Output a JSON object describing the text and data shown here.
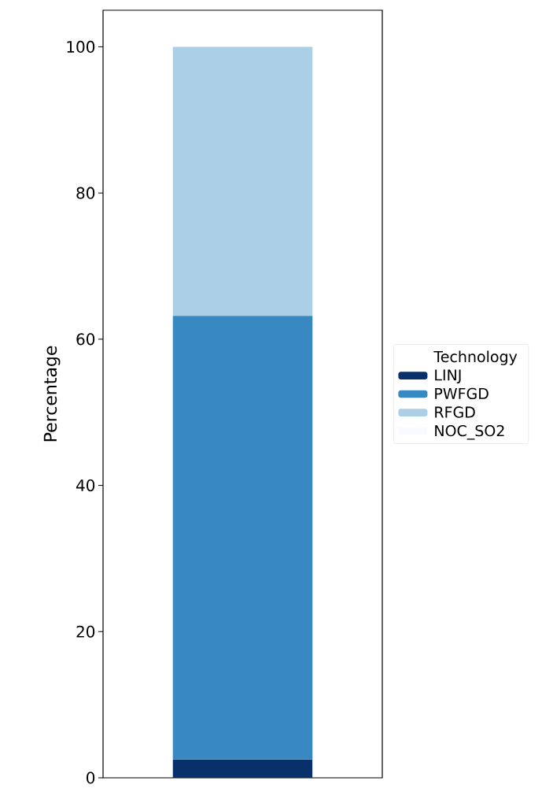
{
  "chart_data": {
    "type": "bar",
    "stacked": true,
    "ylabel": "Percentage",
    "legend_title": "Technology",
    "legend": "right",
    "categories": [
      null
    ],
    "ylim": [
      0,
      105
    ],
    "yticks": [
      0,
      20,
      40,
      60,
      80,
      100
    ],
    "tick_labels": "y",
    "series": [
      {
        "name": "LINJ",
        "color": "#08306b",
        "values": [
          2.5
        ]
      },
      {
        "name": "PWFGD",
        "color": "#3888c1",
        "values": [
          60.7
        ]
      },
      {
        "name": "RFGD",
        "color": "#abcfe5",
        "values": [
          36.8
        ]
      },
      {
        "name": "NOC_SO2",
        "color": "#f7fbff",
        "values": [
          0
        ]
      }
    ]
  }
}
